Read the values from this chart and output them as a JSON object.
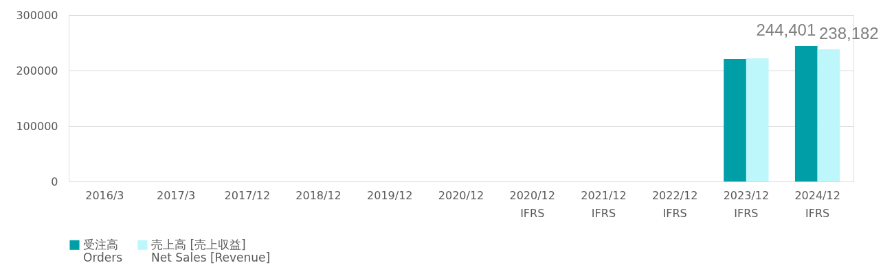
{
  "chart_data": {
    "type": "bar",
    "categories": [
      "2016/3",
      "2017/3",
      "2017/12",
      "2018/12",
      "2019/12",
      "2020/12",
      "2020/12\nIFRS",
      "2021/12\nIFRS",
      "2022/12\nIFRS",
      "2023/12\nIFRS",
      "2024/12\nIFRS"
    ],
    "series": [
      {
        "name": "受注高\nOrders",
        "color": "#009fa8",
        "values": [
          null,
          null,
          null,
          null,
          null,
          null,
          null,
          null,
          null,
          221000,
          244401
        ],
        "value_labels": [
          null,
          null,
          null,
          null,
          null,
          null,
          null,
          null,
          null,
          null,
          "244,401"
        ]
      },
      {
        "name": "売上高 [売上収益]\nNet Sales [Revenue]",
        "color": "#bdf7fb",
        "values": [
          null,
          null,
          null,
          null,
          null,
          null,
          null,
          null,
          null,
          222000,
          238182
        ],
        "value_labels": [
          null,
          null,
          null,
          null,
          null,
          null,
          null,
          null,
          null,
          null,
          "238,182"
        ]
      }
    ],
    "ylim": [
      0,
      300000
    ],
    "yticks": [
      0,
      100000,
      200000,
      300000
    ],
    "grid": "y",
    "legend": "bottom"
  }
}
